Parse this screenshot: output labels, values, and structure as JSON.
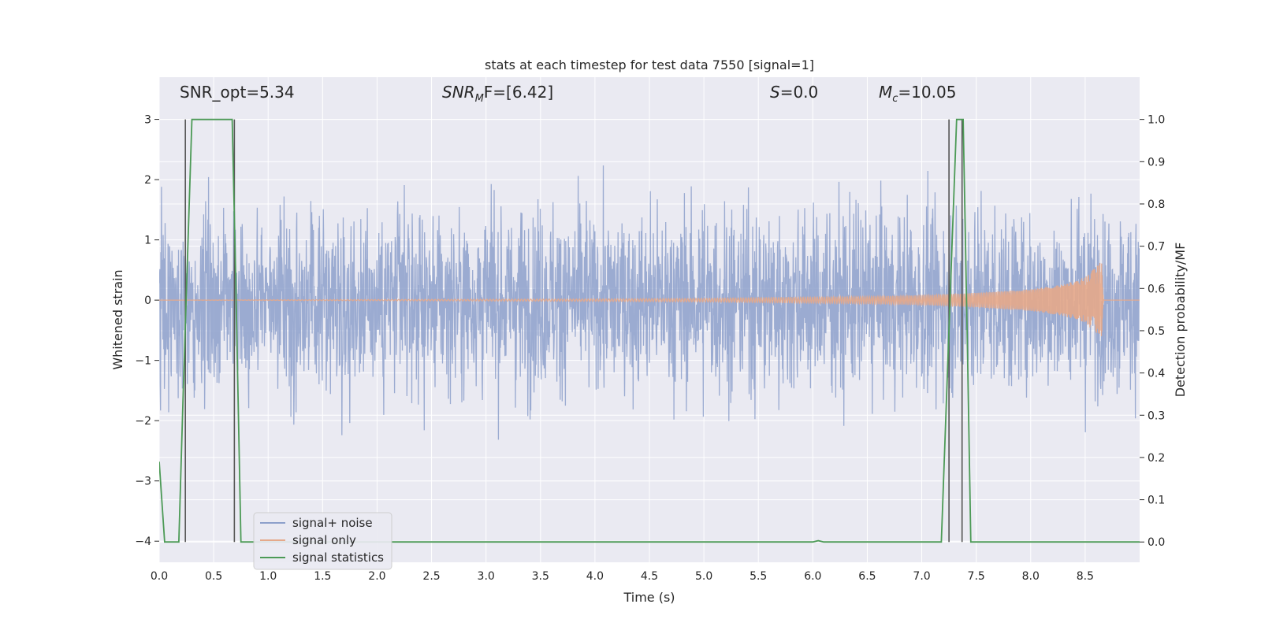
{
  "chart_data": {
    "type": "line",
    "title": "stats at each timestep for test data 7550 [signal=1]",
    "xlabel": "Time (s)",
    "ylabel_left": "Whitened strain",
    "ylabel_right": "Detection probability/MF",
    "xlim": [
      0.0,
      9.0
    ],
    "ylim_left": [
      -4.35,
      3.7
    ],
    "ylim_right": [
      -0.048,
      1.1
    ],
    "x_ticks": [
      "0.0",
      "0.5",
      "1.0",
      "1.5",
      "2.0",
      "2.5",
      "3.0",
      "3.5",
      "4.0",
      "4.5",
      "5.0",
      "5.5",
      "6.0",
      "6.5",
      "7.0",
      "7.5",
      "8.0",
      "8.5"
    ],
    "y_left_ticks": [
      "3",
      "2",
      "1",
      "0",
      "−1",
      "−2",
      "−3",
      "−4"
    ],
    "y_right_ticks": [
      "1.0",
      "0.9",
      "0.8",
      "0.7",
      "0.6",
      "0.5",
      "0.4",
      "0.3",
      "0.2",
      "0.1",
      "0.0"
    ],
    "annotations": {
      "snr_opt": "SNR_opt=5.34",
      "snr_mf_label": "SNR",
      "snr_mf_sub": "M",
      "snr_mf_rest": "F=[6.42]",
      "s_label": "S",
      "s_rest": "=0.0",
      "mc_label": "M",
      "mc_sub": "c",
      "mc_rest": "=10.05"
    },
    "series": [
      {
        "name": "signal+ noise",
        "color": "#8da0cb",
        "description": "whitened noisy strain, amplitude roughly within ±3.5"
      },
      {
        "name": "signal only",
        "color": "#e5a98a",
        "description": "chirp waveform growing until ~8.65 s, peak about ±0.65",
        "envelope": [
          [
            0,
            0.0
          ],
          [
            4.0,
            0.02
          ],
          [
            5.0,
            0.03
          ],
          [
            6.0,
            0.05
          ],
          [
            6.5,
            0.06
          ],
          [
            7.0,
            0.08
          ],
          [
            7.5,
            0.12
          ],
          [
            8.0,
            0.18
          ],
          [
            8.3,
            0.26
          ],
          [
            8.5,
            0.38
          ],
          [
            8.6,
            0.55
          ],
          [
            8.65,
            0.65
          ],
          [
            8.67,
            0.0
          ],
          [
            9.0,
            0.0
          ]
        ]
      },
      {
        "name": "signal statistics",
        "color": "#4c9a56",
        "axis": "right",
        "x": [
          0.0,
          0.05,
          0.18,
          0.22,
          0.3,
          0.67,
          0.7,
          0.75,
          6.0,
          6.05,
          6.1,
          7.18,
          7.28,
          7.32,
          7.38,
          7.42,
          7.45,
          9.0
        ],
        "y": [
          0.19,
          0.0,
          0.0,
          0.35,
          1.0,
          1.0,
          0.65,
          0.0,
          0.0,
          0.003,
          0.0,
          0.0,
          0.72,
          1.0,
          1.0,
          0.45,
          0.0,
          0.0
        ]
      }
    ],
    "vertical_markers": [
      0.24,
      0.69,
      7.25,
      7.37
    ],
    "marker_color": "#555555",
    "legend": {
      "position": "bottom-left",
      "entries": [
        "signal+ noise",
        "signal only",
        "signal statistics"
      ]
    },
    "grid": true,
    "background": "#eaeaf2"
  }
}
